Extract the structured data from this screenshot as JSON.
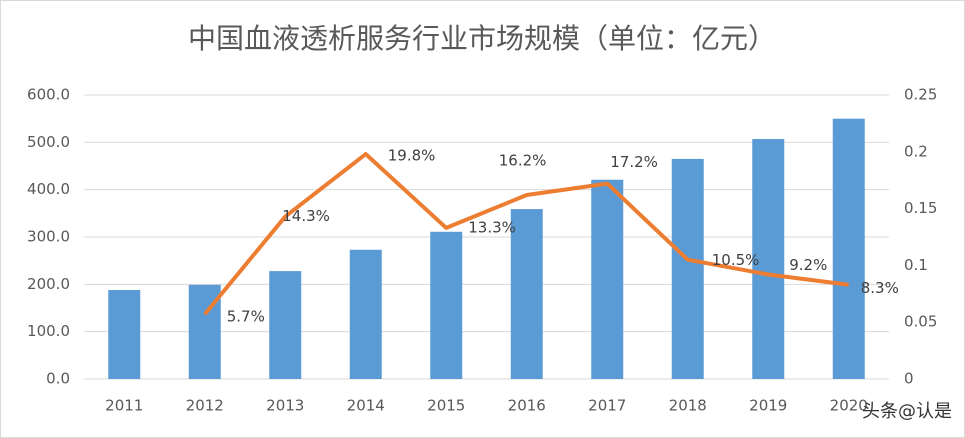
{
  "chart_data": {
    "type": "bar-line",
    "title": "中国血液透析服务行业市场规模（单位：亿元）",
    "categories": [
      "2011",
      "2012",
      "2013",
      "2014",
      "2015",
      "2016",
      "2017",
      "2018",
      "2019",
      "2020"
    ],
    "series": [
      {
        "type": "bar",
        "color": "#5b9bd5",
        "values": [
          188,
          199,
          228,
          273,
          311,
          359,
          421,
          465,
          507,
          550
        ]
      },
      {
        "type": "line",
        "axis": "y2",
        "color": "#ed7d31",
        "values": [
          null,
          0.057,
          0.143,
          0.198,
          0.133,
          0.162,
          0.172,
          0.105,
          0.092,
          0.083
        ],
        "value_labels": [
          null,
          "5.7%",
          "14.3%",
          "19.8%",
          "13.3%",
          "16.2%",
          "17.2%",
          "10.5%",
          "9.2%",
          "8.3%"
        ]
      }
    ],
    "ylim": [
      0,
      600
    ],
    "yticks": [
      {
        "value": 0,
        "label": "0.0"
      },
      {
        "value": 100,
        "label": "100.0"
      },
      {
        "value": 200,
        "label": "200.0"
      },
      {
        "value": 300,
        "label": "300.0"
      },
      {
        "value": 400,
        "label": "400.0"
      },
      {
        "value": 500,
        "label": "500.0"
      },
      {
        "value": 600,
        "label": "600.0"
      }
    ],
    "y2lim": [
      0,
      0.25
    ],
    "y2ticks": [
      0,
      0.05,
      0.1,
      0.15,
      0.2,
      0.25
    ],
    "grid": true,
    "watermark": "头条@认是"
  }
}
